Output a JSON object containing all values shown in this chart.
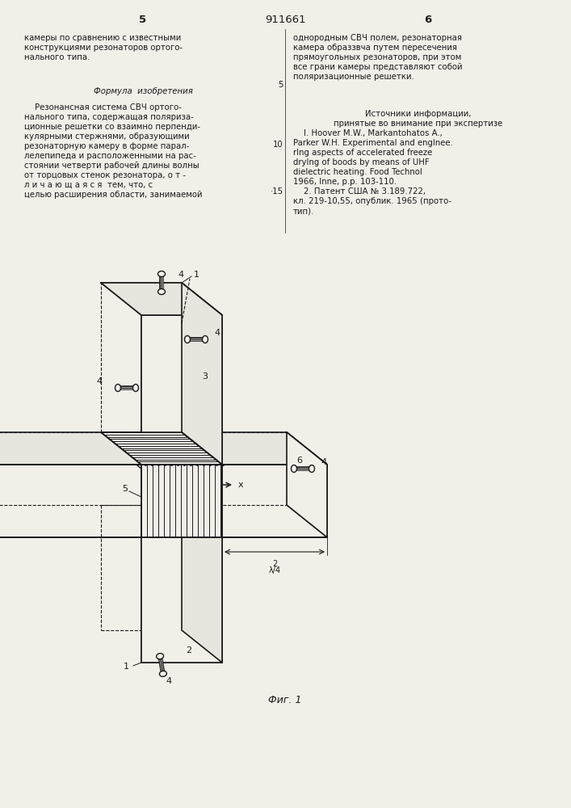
{
  "page_width": 7.07,
  "page_height": 10.0,
  "bg_color": "#f2efe9",
  "text_color": "#1a1a1a",
  "header": {
    "left_num": "5",
    "center_num": "911661",
    "right_num": "6"
  },
  "left_col_text": [
    "камеры по сравнению с известными",
    "конструкциями резонаторов ортого-",
    "нального типа."
  ],
  "right_col_text": [
    "однородным СВЧ полем, резонаторная",
    "камера образзвча путем пересечения",
    "прямоугольных резонаторов, при этом",
    "все грани камеры представляют собой",
    "поляризационные решетки."
  ],
  "formula_title": "Формула  изобретения",
  "left_formula_text": [
    "    Резонансная система СВЧ ортого-",
    "нального типа, содержащая поляриза-",
    "ционные решетки со взаимно перпенди-",
    "кулярными стержнями, образующими",
    "резонаторную камеру в форме парал-",
    "лелепипеда и расположенными на рас-",
    "стоянии четверти рабочей длины волны",
    "от торцовых стенок резонатора, о т -",
    "л и ч а ю щ а я с я  тем, что, с",
    "целью расширения области, занимаемой"
  ],
  "right_col2_text": [
    "dielectric heating. Food Technol",
    "1966, Inne, p.p. 103-110.",
    "    2. Патент США № 3.189.722,",
    "кл. 219-10,55, опублик. 1965 (прото-",
    "тип)."
  ],
  "sources_title": "Источники информации,",
  "sources_subtitle": "принятые во внимание при экспертизе",
  "source1": "    I. Hoover M.W., Markantohatos A.,",
  "source1b": "Parker W.H. Experimental and engInee.",
  "source1c": "rIng aspects of accelerated freeze",
  "source1d": "dryIng of boods by means of UHF",
  "line_num_5": "5",
  "line_num_10": "10",
  "line_num_15": "·15",
  "fig_caption": "Фиг. 1"
}
